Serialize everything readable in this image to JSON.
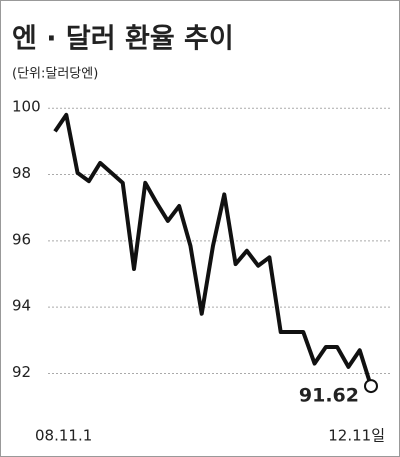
{
  "chart_data": {
    "type": "line",
    "title": "엔 · 달러 환율 추이",
    "subtitle": "(단위:달러당엔)",
    "categories": [
      "08.11.1",
      null,
      null,
      null,
      null,
      null,
      null,
      null,
      null,
      null,
      null,
      null,
      null,
      null,
      null,
      null,
      null,
      null,
      null,
      null,
      null,
      null,
      null,
      null,
      null,
      null,
      null,
      null,
      "12.11일"
    ],
    "values": [
      99.3,
      99.8,
      98.05,
      97.8,
      98.35,
      98.05,
      97.75,
      95.15,
      97.75,
      97.15,
      96.6,
      97.05,
      95.85,
      93.8,
      95.85,
      97.4,
      95.3,
      95.7,
      95.25,
      95.5,
      93.25,
      93.25,
      93.25,
      92.3,
      92.8,
      92.8,
      92.2,
      92.7,
      91.62
    ],
    "annotation": "91.62",
    "color": "#111111",
    "ylim": [
      91.2,
      100.7
    ],
    "yticks": [
      92,
      94,
      96,
      98,
      100
    ],
    "grid": true
  }
}
